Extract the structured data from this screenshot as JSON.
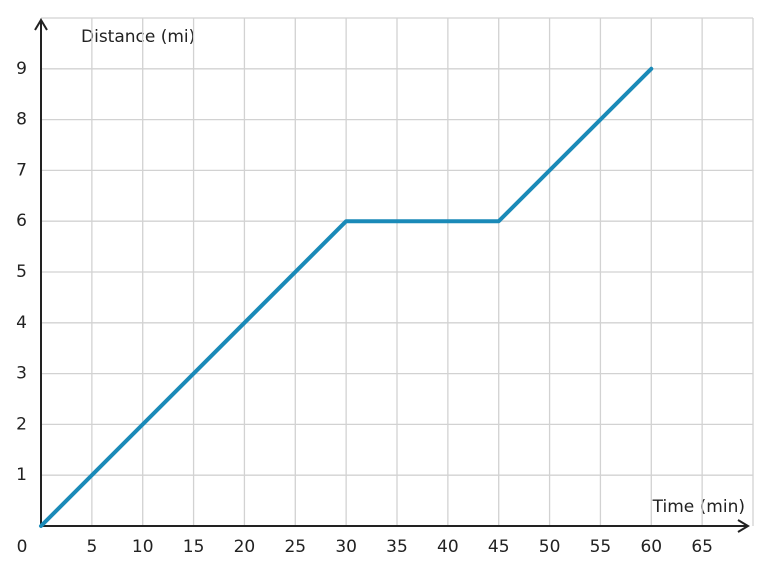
{
  "chart_data": {
    "type": "line",
    "x_label": "Time (min)",
    "y_label": "Distance (mi)",
    "x": [
      0,
      30,
      45,
      60
    ],
    "series": [
      {
        "color": "#1a8ab8",
        "values": [
          0,
          6,
          6,
          9
        ]
      }
    ],
    "xlim": [
      0,
      70
    ],
    "ylim": [
      0,
      10
    ],
    "xticks": [
      0,
      5,
      10,
      15,
      20,
      25,
      30,
      35,
      40,
      45,
      50,
      55,
      60,
      65
    ],
    "yticks": [
      1,
      2,
      3,
      4,
      5,
      6,
      7,
      8,
      9
    ],
    "grid": true
  }
}
